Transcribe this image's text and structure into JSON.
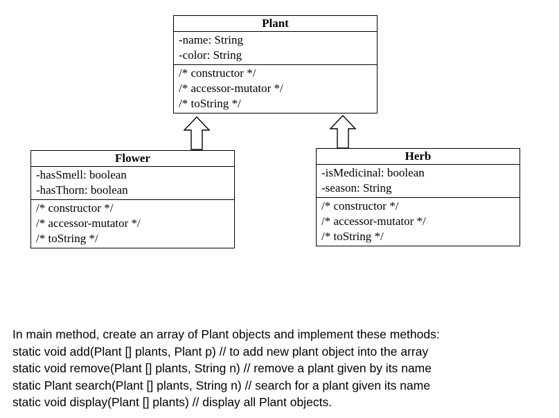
{
  "diagram": {
    "classes": {
      "plant": {
        "name": "Plant",
        "attributes": [
          "-name: String",
          "-color: String"
        ],
        "methods": [
          "/* constructor */",
          "/* accessor-mutator */",
          "/* toString */"
        ]
      },
      "flower": {
        "name": "Flower",
        "attributes": [
          "-hasSmell: boolean",
          "-hasThorn: boolean"
        ],
        "methods": [
          "/* constructor */",
          "/* accessor-mutator */",
          "/* toString */"
        ]
      },
      "herb": {
        "name": "Herb",
        "attributes": [
          "-isMedicinal: boolean",
          "-season: String"
        ],
        "methods": [
          "/* constructor */",
          "/* accessor-mutator */",
          "/* toString */"
        ]
      }
    },
    "relations": [
      {
        "from": "Flower",
        "to": "Plant",
        "type": "inheritance"
      },
      {
        "from": "Herb",
        "to": "Plant",
        "type": "inheritance"
      }
    ]
  },
  "instructions": [
    "In main method, create an array of Plant objects and implement these methods:",
    "static void add(Plant [] plants, Plant p) // to add new plant object into the array",
    "static void remove(Plant [] plants, String n) // remove a plant given by its name",
    "static Plant search(Plant [] plants, String n) // search for a plant given its name",
    "static void display(Plant [] plants) // display all Plant objects."
  ]
}
